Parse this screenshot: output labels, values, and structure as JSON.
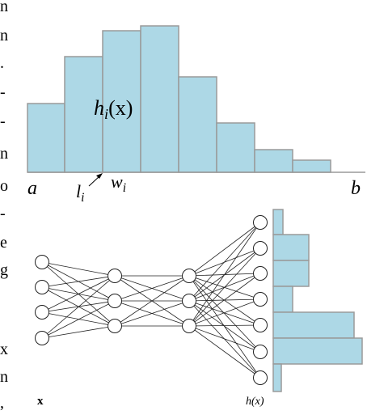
{
  "margin_text": [
    "n",
    "n",
    ".",
    "-",
    "-",
    "n",
    "o",
    "-",
    "e",
    "g",
    "x",
    "n",
    ","
  ],
  "histogram": {
    "left_label": "a",
    "right_label": "b",
    "bin_left_label": {
      "base": "l",
      "sub": "i"
    },
    "bin_width_label": {
      "base": "w",
      "sub": "i"
    },
    "bin_height_label": {
      "base": "h",
      "sub": "i",
      "rest": "(x)"
    }
  },
  "network": {
    "input_label": "x",
    "output_label": "h(x)"
  }
}
